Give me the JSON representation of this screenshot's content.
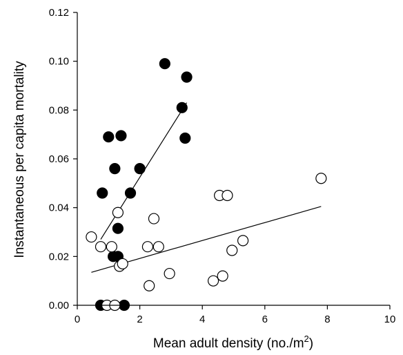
{
  "chart_data": {
    "type": "scatter",
    "title": "",
    "xlabel": "Mean adult density (no./m",
    "xlabel_sup": "2",
    "xlabel_suffix": ")",
    "ylabel": "Instantaneous per capita mortality",
    "xlim": [
      0,
      10
    ],
    "ylim": [
      0,
      0.12
    ],
    "xticks": [
      0,
      2,
      4,
      6,
      8,
      10
    ],
    "xtick_labels": [
      "0",
      "2",
      "4",
      "6",
      "8",
      "10"
    ],
    "yticks": [
      0,
      0.02,
      0.04,
      0.06,
      0.08,
      0.1,
      0.12
    ],
    "ytick_labels": [
      "0.00",
      "0.02",
      "0.04",
      "0.06",
      "0.08",
      "0.10",
      "0.12"
    ],
    "grid": false,
    "legend": false,
    "series": [
      {
        "marker": "filled-circle",
        "color": "#000000",
        "points": [
          [
            0.75,
            0.0
          ],
          [
            0.8,
            0.046
          ],
          [
            1.0,
            0.069
          ],
          [
            1.2,
            0.056
          ],
          [
            1.4,
            0.0695
          ],
          [
            1.5,
            0.0
          ],
          [
            1.7,
            0.046
          ],
          [
            2.0,
            0.056
          ],
          [
            2.8,
            0.099
          ],
          [
            3.35,
            0.081
          ],
          [
            3.45,
            0.0685
          ],
          [
            3.5,
            0.0935
          ],
          [
            1.15,
            0.02
          ],
          [
            1.3,
            0.02
          ],
          [
            1.3,
            0.0315
          ]
        ],
        "fit_line": [
          [
            0.75,
            0.027
          ],
          [
            3.5,
            0.083
          ]
        ]
      },
      {
        "marker": "open-circle",
        "color": "#ffffff",
        "points": [
          [
            0.45,
            0.028
          ],
          [
            0.75,
            0.024
          ],
          [
            0.95,
            0.0
          ],
          [
            1.1,
            0.024
          ],
          [
            1.2,
            0.0
          ],
          [
            1.3,
            0.038
          ],
          [
            1.35,
            0.016
          ],
          [
            1.45,
            0.017
          ],
          [
            2.25,
            0.024
          ],
          [
            2.3,
            0.008
          ],
          [
            2.45,
            0.0355
          ],
          [
            2.6,
            0.024
          ],
          [
            2.95,
            0.013
          ],
          [
            4.35,
            0.01
          ],
          [
            4.55,
            0.045
          ],
          [
            4.65,
            0.012
          ],
          [
            4.8,
            0.045
          ],
          [
            4.95,
            0.0225
          ],
          [
            5.3,
            0.0265
          ],
          [
            7.8,
            0.052
          ]
        ],
        "fit_line": [
          [
            0.45,
            0.0135
          ],
          [
            7.8,
            0.0405
          ]
        ]
      }
    ]
  }
}
